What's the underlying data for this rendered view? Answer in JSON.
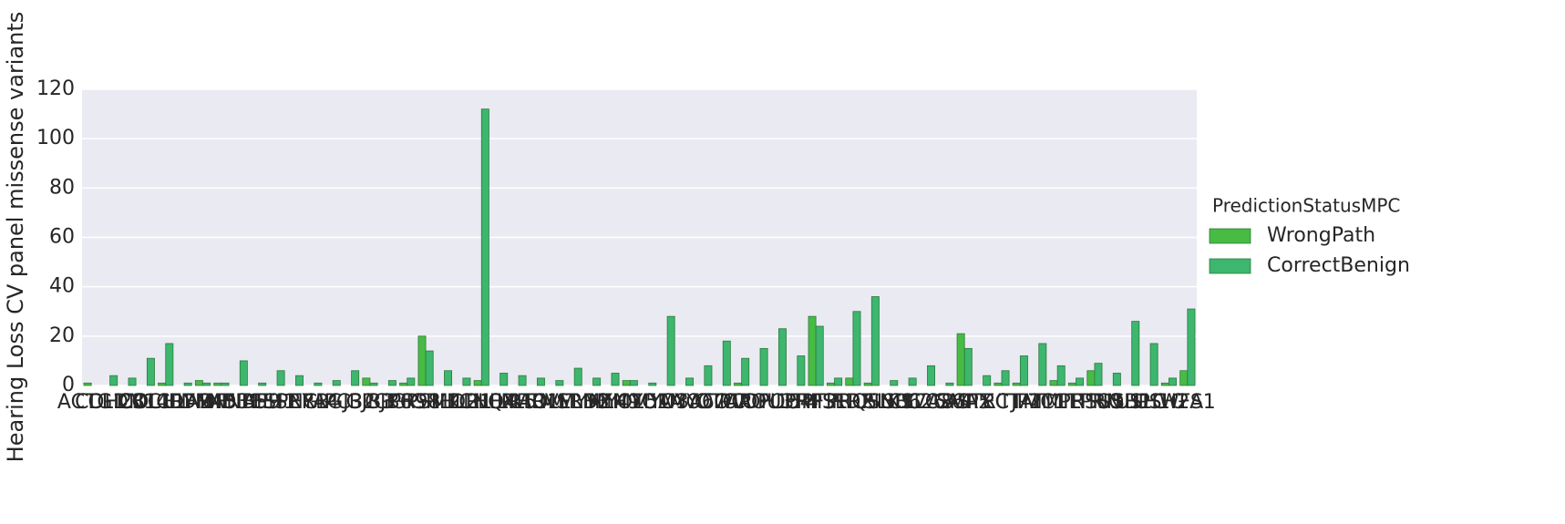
{
  "chart_data": {
    "type": "bar",
    "ylabel": "Hearing Loss CV panel missense variants",
    "legend_title": "PredictionStatusMPC",
    "legend_position": "right",
    "categories": [
      "ACTG1",
      "CDH23",
      "CLDN14",
      "COCH",
      "COL11A2",
      "CRYM",
      "DFNA5",
      "DFNB31",
      "DFNB59",
      "DIAPH1",
      "ESPN",
      "ESRRB",
      "EYA4",
      "GIPC3",
      "GJB2",
      "GJB3",
      "GJB6",
      "GPR98",
      "GPSM2",
      "GRHL2",
      "ILDR1",
      "KCNQ4",
      "LHFPL5",
      "LOXHD1",
      "LRTOMT",
      "MARVELD2",
      "MSRB3",
      "MYH14",
      "MYH9",
      "MYO15A",
      "MYO1A",
      "MYO3A",
      "MYO6",
      "MYO7A",
      "OTOA",
      "OTOF",
      "PCDH15",
      "POU3F4",
      "POU4F3",
      "PRPS1",
      "PTPRQ",
      "RDX",
      "SERPINB6",
      "SIX1",
      "SLC17A8",
      "SLC26A4",
      "SLC26A5",
      "SMPX",
      "STRC",
      "TECTA",
      "TJP2",
      "TMC1",
      "TMIE",
      "TMPRSS3",
      "TPRN",
      "TRIOBP",
      "USH1C",
      "USH1G",
      "USH2A",
      "WFS1"
    ],
    "series": [
      {
        "name": "WrongPath",
        "color": "#47bb43",
        "values": [
          1,
          0,
          0,
          0,
          1,
          0,
          2,
          1,
          0,
          0,
          0,
          0,
          0,
          0,
          0,
          3,
          0,
          1,
          20,
          0,
          0,
          2,
          0,
          0,
          0,
          0,
          0,
          0,
          0,
          2,
          0,
          0,
          0,
          0,
          0,
          1,
          0,
          0,
          0,
          28,
          1,
          3,
          1,
          0,
          0,
          0,
          0,
          21,
          0,
          1,
          1,
          0,
          2,
          1,
          6,
          0,
          0,
          0,
          1,
          6
        ]
      },
      {
        "name": "CorrectBenign",
        "color": "#3db66e",
        "values": [
          0,
          4,
          3,
          11,
          17,
          1,
          1,
          1,
          10,
          1,
          6,
          4,
          1,
          2,
          6,
          1,
          2,
          3,
          14,
          6,
          3,
          112,
          5,
          4,
          3,
          2,
          7,
          3,
          5,
          2,
          1,
          28,
          3,
          8,
          18,
          11,
          15,
          23,
          12,
          24,
          3,
          30,
          36,
          2,
          3,
          8,
          1,
          15,
          4,
          6,
          12,
          17,
          8,
          3,
          9,
          5,
          26,
          17,
          3,
          31
        ]
      }
    ],
    "ylim": [
      0,
      120
    ],
    "yticks": [
      0,
      20,
      40,
      60,
      80,
      100,
      120
    ],
    "grid": true
  }
}
